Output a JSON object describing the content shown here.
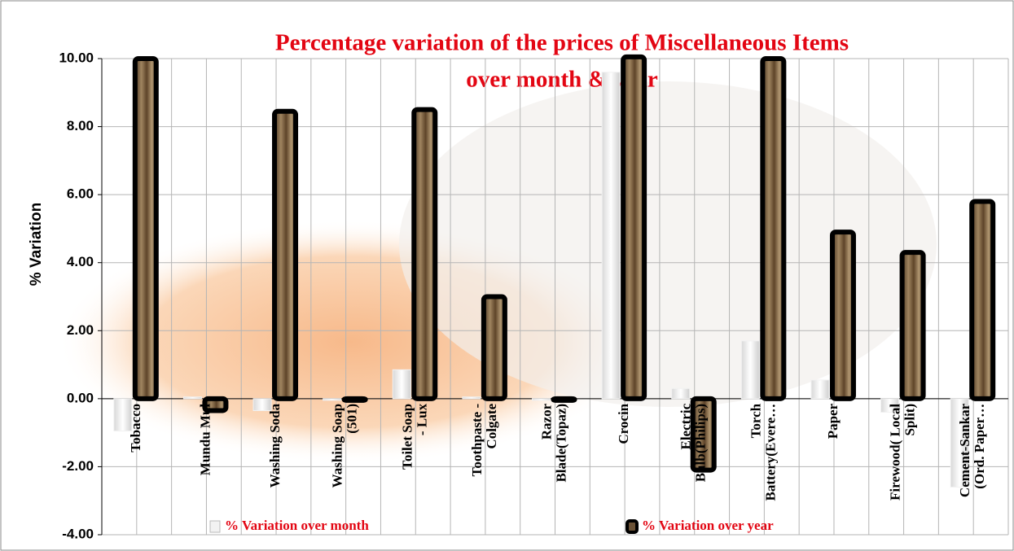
{
  "chart_data": {
    "type": "bar",
    "title": "Percentage variation of the prices of Miscellaneous Items",
    "subtitle": "over month & year",
    "y_label": "% Variation",
    "categories": [
      "Tobacco",
      "Mundu Mul",
      "Washing Soda",
      "Washing Soap\n(501)",
      "Toilet Soap\n- Lux",
      "Toothpaste -\nColgate",
      "Razor\nBlade(Topaz)",
      "Crocin",
      "Electric\nBulb(Philips)",
      "Torch\nBattery(Evere…",
      "Paper",
      "Firewood( Local\nSplit)",
      "Cement-Sankar\n(Ord. Paper…"
    ],
    "series": [
      {
        "name": "%  Variation over month",
        "color": "#f2f2f2",
        "values": [
          -0.95,
          0.05,
          -0.35,
          0,
          0.85,
          0.05,
          0,
          9.6,
          0.3,
          1.7,
          0.55,
          -0.4,
          -2.6
        ]
      },
      {
        "name": "%  Variation over year",
        "color": "#6b5236",
        "values": [
          10.0,
          -0.35,
          8.45,
          0,
          8.5,
          3.0,
          0,
          10.05,
          -2.1,
          10.0,
          4.9,
          4.3,
          5.8
        ]
      }
    ],
    "ylim": [
      -4,
      10
    ],
    "yticks": [
      {
        "value": -4,
        "label": "-4.00"
      },
      {
        "value": -2,
        "label": "-2.00"
      },
      {
        "value": 0,
        "label": "0.00"
      },
      {
        "value": 2,
        "label": "2.00"
      },
      {
        "value": 4,
        "label": "4.00"
      },
      {
        "value": 6,
        "label": "6.00"
      },
      {
        "value": 8,
        "label": "8.00"
      },
      {
        "value": 10,
        "label": "10.00"
      }
    ],
    "grid": true
  }
}
